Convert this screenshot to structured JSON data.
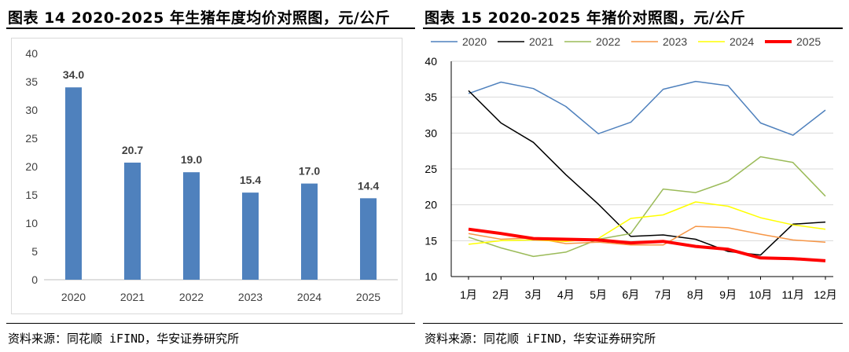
{
  "left": {
    "title": "图表 14 2020-2025 年生猪年度均价对照图，元/公斤",
    "source": "资料来源：同花顺 iFIND，华安证券研究所"
  },
  "right": {
    "title": "图表 15 2020-2025 年猪价对照图，元/公斤",
    "source": "资料来源：同花顺 iFIND，华安证券研究所"
  },
  "chart_data": [
    {
      "type": "bar",
      "title": "2020-2025 年生猪年度均价对照图，元/公斤",
      "categories": [
        "2020",
        "2021",
        "2022",
        "2023",
        "2024",
        "2025"
      ],
      "values": [
        34.0,
        20.7,
        19.0,
        15.4,
        17.0,
        14.4
      ],
      "value_labels": [
        "34.0",
        "20.7",
        "19.0",
        "15.4",
        "17.0",
        "14.4"
      ],
      "ylim": [
        0,
        40
      ],
      "yticks": [
        0,
        5,
        10,
        15,
        20,
        25,
        30,
        35,
        40
      ],
      "bar_color": "#4f81bd",
      "grid": false
    },
    {
      "type": "line",
      "title": "2020-2025 年猪价对照图，元/公斤",
      "categories": [
        "1月",
        "2月",
        "3月",
        "4月",
        "5月",
        "6月",
        "7月",
        "8月",
        "9月",
        "10月",
        "11月",
        "12月"
      ],
      "ylim": [
        10,
        40
      ],
      "yticks": [
        10,
        15,
        20,
        25,
        30,
        35,
        40
      ],
      "legend_position": "top",
      "grid": true,
      "series": [
        {
          "name": "2020",
          "color": "#4f81bd",
          "width": 1.5,
          "values": [
            35.5,
            37.1,
            36.2,
            33.7,
            29.9,
            31.5,
            36.1,
            37.2,
            36.6,
            31.4,
            29.7,
            33.2
          ]
        },
        {
          "name": "2021",
          "color": "#000000",
          "width": 1.5,
          "values": [
            35.9,
            31.4,
            28.7,
            24.2,
            20.1,
            15.6,
            15.8,
            15.2,
            13.5,
            13.0,
            17.3,
            17.6
          ]
        },
        {
          "name": "2022",
          "color": "#9bbb59",
          "width": 1.5,
          "values": [
            15.5,
            14.0,
            12.8,
            13.4,
            15.2,
            16.0,
            22.2,
            21.7,
            23.3,
            26.7,
            25.9,
            21.2
          ]
        },
        {
          "name": "2023",
          "color": "#f79646",
          "width": 1.5,
          "values": [
            16.0,
            15.2,
            15.4,
            14.6,
            14.8,
            14.4,
            14.4,
            17.0,
            16.8,
            15.9,
            15.1,
            14.8
          ]
        },
        {
          "name": "2024",
          "color": "#ffff00",
          "width": 1.5,
          "values": [
            14.5,
            15.0,
            15.1,
            14.9,
            15.3,
            18.1,
            18.6,
            20.4,
            19.8,
            18.2,
            17.2,
            16.6
          ]
        },
        {
          "name": "2025",
          "color": "#ff0000",
          "width": 4,
          "values": [
            16.6,
            16.0,
            15.3,
            15.2,
            15.1,
            14.7,
            14.9,
            14.2,
            13.8,
            12.6,
            12.5,
            12.2
          ]
        }
      ]
    }
  ]
}
